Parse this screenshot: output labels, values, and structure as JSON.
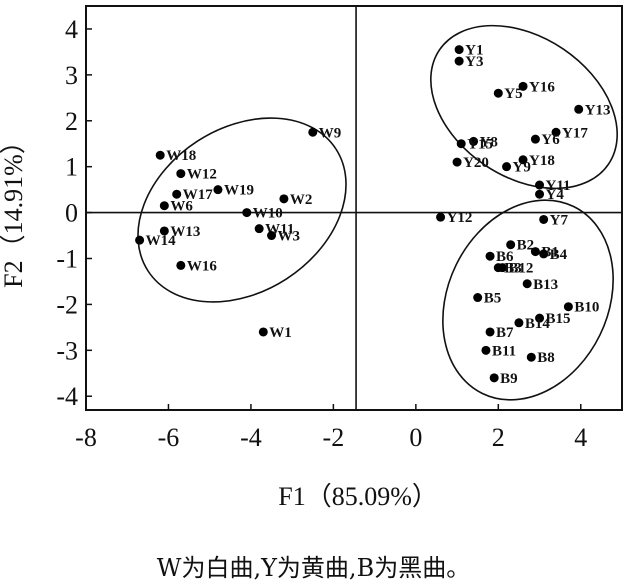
{
  "caption": "W为白曲,Y为黄曲,B为黑曲。",
  "chart_data": {
    "type": "scatter",
    "title": "",
    "xlabel": "F1（85.09%）",
    "ylabel": "F2（14.91%）",
    "xlim": [
      -8,
      5
    ],
    "ylim": [
      -4.3,
      4.5
    ],
    "x_ticks": [
      "-8",
      "-6",
      "-4",
      "-2",
      "0",
      "2",
      "4"
    ],
    "y_ticks": [
      "-4",
      "-3",
      "-2",
      "-1",
      "0",
      "1",
      "2",
      "3",
      "4"
    ],
    "reference_lines": {
      "x": -1.45,
      "y": 0
    },
    "grid": false,
    "marker_color": "#000000",
    "groups": [
      {
        "points": [
          {
            "label": "W9",
            "x": -2.5,
            "y": 1.75
          },
          {
            "label": "W18",
            "x": -6.2,
            "y": 1.25
          },
          {
            "label": "W12",
            "x": -5.7,
            "y": 0.85
          },
          {
            "label": "W19",
            "x": -4.8,
            "y": 0.5
          },
          {
            "label": "W17",
            "x": -5.8,
            "y": 0.4
          },
          {
            "label": "W6",
            "x": -6.1,
            "y": 0.15
          },
          {
            "label": "W2",
            "x": -3.2,
            "y": 0.3
          },
          {
            "label": "W10",
            "x": -4.1,
            "y": 0.0
          },
          {
            "label": "W11",
            "x": -3.8,
            "y": -0.35
          },
          {
            "label": "W3",
            "x": -3.5,
            "y": -0.5
          },
          {
            "label": "W13",
            "x": -6.1,
            "y": -0.4
          },
          {
            "label": "W14",
            "x": -6.7,
            "y": -0.6
          },
          {
            "label": "W16",
            "x": -5.7,
            "y": -1.15
          },
          {
            "label": "W1",
            "x": -3.7,
            "y": -2.6
          }
        ]
      },
      {
        "points": [
          {
            "label": "Y1",
            "x": 1.05,
            "y": 3.55
          },
          {
            "label": "Y3",
            "x": 1.05,
            "y": 3.3
          },
          {
            "label": "Y16",
            "x": 2.6,
            "y": 2.75
          },
          {
            "label": "Y5",
            "x": 2.0,
            "y": 2.6
          },
          {
            "label": "Y13",
            "x": 3.95,
            "y": 2.25
          },
          {
            "label": "Y17",
            "x": 3.4,
            "y": 1.75
          },
          {
            "label": "Y6",
            "x": 2.9,
            "y": 1.6
          },
          {
            "label": "Y8",
            "x": 1.4,
            "y": 1.55
          },
          {
            "label": "Y15",
            "x": 1.1,
            "y": 1.5
          },
          {
            "label": "Y18",
            "x": 2.6,
            "y": 1.15
          },
          {
            "label": "Y20",
            "x": 1.0,
            "y": 1.1
          },
          {
            "label": "Y9",
            "x": 2.2,
            "y": 1.0
          },
          {
            "label": "Y11",
            "x": 3.0,
            "y": 0.6
          },
          {
            "label": "Y4",
            "x": 3.0,
            "y": 0.4
          },
          {
            "label": "Y12",
            "x": 0.6,
            "y": -0.1
          },
          {
            "label": "Y7",
            "x": 3.1,
            "y": -0.15
          }
        ]
      },
      {
        "points": [
          {
            "label": "B2",
            "x": 2.3,
            "y": -0.7
          },
          {
            "label": "B1",
            "x": 2.9,
            "y": -0.85
          },
          {
            "label": "B4",
            "x": 3.1,
            "y": -0.9
          },
          {
            "label": "B6",
            "x": 1.8,
            "y": -0.95
          },
          {
            "label": "B12",
            "x": 2.1,
            "y": -1.2
          },
          {
            "label": "B3",
            "x": 2.0,
            "y": -1.2
          },
          {
            "label": "B13",
            "x": 2.7,
            "y": -1.55
          },
          {
            "label": "B5",
            "x": 1.5,
            "y": -1.85
          },
          {
            "label": "B10",
            "x": 3.7,
            "y": -2.05
          },
          {
            "label": "B15",
            "x": 3.0,
            "y": -2.3
          },
          {
            "label": "B14",
            "x": 2.5,
            "y": -2.4
          },
          {
            "label": "B7",
            "x": 1.8,
            "y": -2.6
          },
          {
            "label": "B11",
            "x": 1.7,
            "y": -3.0
          },
          {
            "label": "B8",
            "x": 2.8,
            "y": -3.15
          },
          {
            "label": "B9",
            "x": 1.9,
            "y": -3.6
          }
        ]
      }
    ]
  }
}
